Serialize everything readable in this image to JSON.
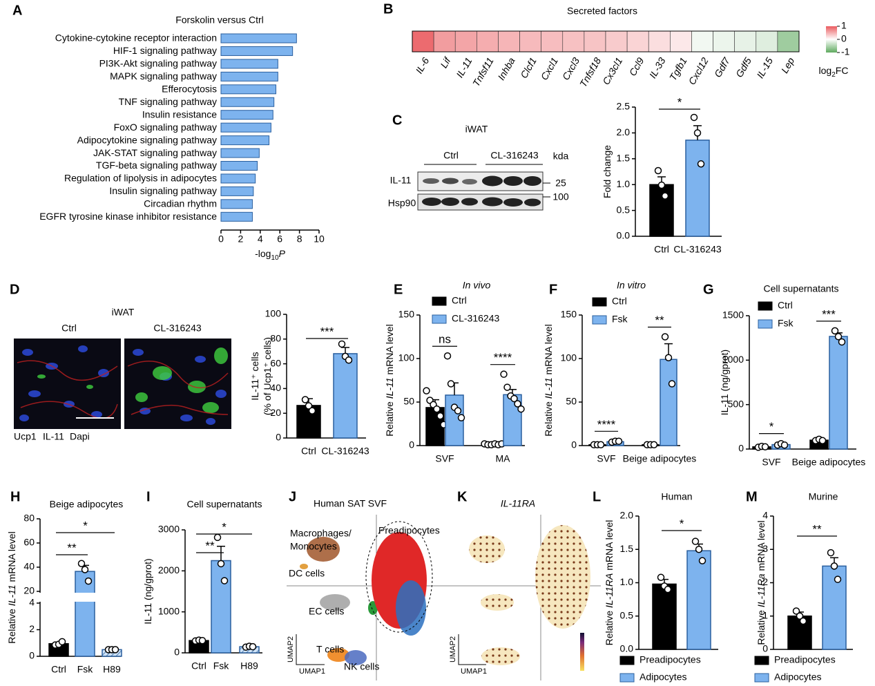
{
  "chart_data": [
    {
      "type": "barh",
      "panel": "A",
      "title": "Forskolin versus Ctrl",
      "categories": [
        "Cytokine-cytokine receptor interaction",
        "HIF-1 signaling pathway",
        "PI3K-Akt signaling pathway",
        "MAPK signaling pathway",
        "Efferocytosis",
        "TNF signaling pathway",
        "Insulin resistance",
        "FoxO signaling pathway",
        "Adipocytokine signaling pathway",
        "JAK-STAT signaling pathway",
        "TGF-beta signaling pathway",
        "Regulation of lipolysis in adipocytes",
        "Insulin signaling pathway",
        "Circadian rhythm",
        "EGFR tyrosine kinase inhibitor resistance"
      ],
      "values": [
        7.7,
        7.3,
        5.8,
        5.8,
        5.6,
        5.4,
        5.3,
        5.1,
        4.9,
        3.9,
        3.7,
        3.5,
        3.3,
        3.2,
        3.2
      ],
      "color": "#7db3ee",
      "label_colors": [
        "#e02020",
        "#000000",
        "#000000",
        "#000000",
        "#000000",
        "#000000",
        "#000000",
        "#000000",
        "#000000",
        "#000000",
        "#000000",
        "#000000",
        "#000000",
        "#000000",
        "#000000"
      ],
      "xlim": [
        0,
        10
      ],
      "xticks": [
        0,
        2,
        4,
        6,
        8,
        10
      ],
      "xlabel": [
        "-log",
        "10",
        "P"
      ]
    },
    {
      "type": "heatmap",
      "panel": "B",
      "title": "Secreted factors",
      "categories": [
        "IL-6",
        "Lif",
        "IL-11",
        "Tnfsf11",
        "Inhba",
        "Clcf1",
        "Cxcl1",
        "Cxcl3",
        "Tnfsf18",
        "Cx3cl1",
        "Ccl9",
        "IL-33",
        "Tgfb1",
        "Cxcl12",
        "Gdf7",
        "Gdf5",
        "IL-15",
        "Lep"
      ],
      "values": [
        0.9,
        0.6,
        0.55,
        0.5,
        0.45,
        0.42,
        0.4,
        0.38,
        0.36,
        0.32,
        0.26,
        0.2,
        0.14,
        -0.08,
        -0.12,
        -0.15,
        -0.2,
        -0.6
      ],
      "label_colors": [
        "#000000",
        "#000000",
        "#e02020",
        "#000000",
        "#000000",
        "#000000",
        "#000000",
        "#000000",
        "#000000",
        "#000000",
        "#000000",
        "#000000",
        "#000000",
        "#000000",
        "#000000",
        "#000000",
        "#000000",
        "#000000"
      ],
      "label_italic": true,
      "clim": [
        -1,
        1
      ],
      "cticks": [
        1,
        0,
        -1
      ],
      "colors": [
        "#5faa5f",
        "#ffffff",
        "#ea5b5f"
      ],
      "colorbar_label": [
        "log",
        "2",
        "FC"
      ]
    },
    {
      "type": "bar",
      "panel": "C",
      "categories": [
        "Ctrl",
        "CL-316243"
      ],
      "values": [
        1.0,
        1.86
      ],
      "errors": [
        0.15,
        0.28
      ],
      "points": [
        [
          1.27,
          0.99,
          0.78
        ],
        [
          2.3,
          2.0,
          1.4
        ]
      ],
      "colors": [
        "#000000",
        "#7db3ee"
      ],
      "ylim": [
        0,
        2.5
      ],
      "yticks": [
        {
          "value": 0,
          "label": "0.0"
        },
        0.5,
        {
          "value": 1,
          "label": "1.0"
        },
        1.5,
        {
          "value": 2,
          "label": "2.0"
        },
        2.5
      ],
      "ylabel": [
        [
          "Fold change"
        ]
      ],
      "significance": [
        "*"
      ]
    },
    {
      "type": "bar",
      "categories": [
        "Ctrl",
        "CL-316243"
      ],
      "values": [
        26.3,
        68.2
      ],
      "errors": [
        5.5,
        5
      ],
      "points": [
        [
          31,
          26,
          22
        ],
        [
          76,
          66,
          63
        ]
      ],
      "colors": [
        "#000000",
        "#7db3ee"
      ],
      "ylim": [
        0,
        100
      ],
      "yticks": [
        0,
        20,
        40,
        60,
        80,
        100
      ],
      "ylabel": [
        [
          "IL-11⁺ cells"
        ],
        [
          "(% of Ucp1⁺ cells)"
        ]
      ],
      "significance": [
        "***"
      ]
    },
    {
      "type": "bar",
      "panel": "E",
      "title": "In vivo",
      "title_italic": true,
      "categories": [
        "SVF",
        "MA"
      ],
      "series": [
        {
          "name": "Ctrl",
          "color": "#000000",
          "values": [
            43.7,
            1.5
          ],
          "errors": [
            9,
            0.5
          ],
          "points": [
            [
              63,
              52,
              47,
              42,
              34,
              24
            ],
            [
              2,
              1,
              1,
              2,
              1,
              2
            ]
          ]
        },
        {
          "name": "CL-316243",
          "color": "#7db3ee",
          "values": [
            58,
            58.5
          ],
          "errors": [
            14,
            6
          ],
          "points": [
            [
              103,
              71,
              44,
              40,
              32
            ],
            [
              82,
              67,
              57,
              54,
              48,
              42
            ]
          ]
        }
      ],
      "legend": "top-left",
      "ylim": [
        0,
        150
      ],
      "yticks": [
        0,
        50,
        100,
        150
      ],
      "ylabel": [
        [
          "Relative ",
          "IL-11",
          " mRNA level"
        ]
      ],
      "significance": [
        "ns",
        "****"
      ]
    },
    {
      "type": "bar",
      "panel": "F",
      "title": "In vitro",
      "title_italic": true,
      "categories": [
        "SVF",
        "Beige adipocytes"
      ],
      "series": [
        {
          "name": "Ctrl",
          "color": "#000000",
          "values": [
            1,
            1
          ],
          "errors": [
            0.3,
            0.3
          ],
          "points": [
            [
              1,
              1,
              1
            ],
            [
              1,
              1,
              1
            ]
          ]
        },
        {
          "name": "Fsk",
          "color": "#7db3ee",
          "values": [
            4.5,
            99
          ],
          "errors": [
            0.8,
            18
          ],
          "points": [
            [
              4,
              5,
              5
            ],
            [
              125,
              101,
              71
            ]
          ]
        }
      ],
      "legend": "top-left",
      "ylim": [
        0,
        150
      ],
      "yticks": [
        0,
        50,
        100,
        150
      ],
      "ylabel": [
        [
          "Relative ",
          "IL-11",
          " mRNA level"
        ]
      ],
      "significance": [
        "****",
        "**"
      ]
    },
    {
      "type": "bar",
      "panel": "G",
      "title": "Cell supernatants",
      "categories": [
        "SVF",
        "Beige adipocytes"
      ],
      "series": [
        {
          "name": "Ctrl",
          "color": "#000000",
          "values": [
            25,
            100
          ],
          "errors": [
            8,
            10
          ],
          "points": [
            [
              20,
              30,
              25
            ],
            [
              95,
              110,
              95
            ]
          ]
        },
        {
          "name": "Fsk",
          "color": "#7db3ee",
          "values": [
            50,
            1267
          ],
          "errors": [
            15,
            40
          ],
          "points": [
            [
              45,
              60,
              45
            ],
            [
              1330,
              1265,
              1205
            ]
          ]
        }
      ],
      "legend": "top-left",
      "ylim": [
        0,
        1500
      ],
      "yticks": [
        0,
        500,
        1000,
        1500
      ],
      "ylabel": [
        [
          "IL-11 (ng/gprot)"
        ]
      ],
      "significance": [
        "*",
        "***"
      ]
    },
    {
      "type": "bar",
      "panel": "H",
      "title": "Beige adipocytes",
      "categories": [
        "Ctrl",
        "Fsk",
        "H89"
      ],
      "values": [
        0.95,
        36.5,
        0.5
      ],
      "errors": [
        0.1,
        5,
        0.05
      ],
      "points": [
        [
          0.85,
          0.9,
          1.1
        ],
        [
          43,
          38,
          28.5
        ],
        [
          0.5,
          0.5,
          0.5
        ]
      ],
      "colors": [
        "#000000",
        "#7db3ee",
        "#cfe3f7"
      ],
      "hatch": [
        false,
        false,
        true
      ],
      "ylim": [
        0,
        80
      ],
      "ybreak": [
        4,
        20
      ],
      "yticks": [
        0,
        2,
        4,
        20,
        40,
        60,
        80
      ],
      "ylabel": [
        [
          "Relative ",
          "IL-11",
          " mRNA level"
        ]
      ],
      "significance": [
        "**",
        "*"
      ]
    },
    {
      "type": "bar",
      "panel": "I",
      "title": "Cell supernatants",
      "categories": [
        "Ctrl",
        "Fsk",
        "H89"
      ],
      "values": [
        300,
        2250,
        150
      ],
      "errors": [
        25,
        350,
        20
      ],
      "points": [
        [
          290,
          310,
          300
        ],
        [
          2816,
          2175,
          1760
        ],
        [
          140,
          160,
          150
        ]
      ],
      "colors": [
        "#000000",
        "#7db3ee",
        "#cfe3f7"
      ],
      "hatch": [
        false,
        false,
        true
      ],
      "ylim": [
        0,
        3000
      ],
      "yticks": [
        0,
        1000,
        2000,
        3000
      ],
      "ylabel": [
        [
          "IL-11 (ng/gprot)"
        ]
      ],
      "significance": [
        "**",
        "*"
      ]
    },
    {
      "type": "bar",
      "panel": "L",
      "title": "Human",
      "categories": [
        "Preadipocytes",
        "Adipocytes"
      ],
      "values": [
        0.98,
        1.48
      ],
      "errors": [
        0.07,
        0.1
      ],
      "points": [
        [
          1.08,
          0.95,
          0.9
        ],
        [
          1.62,
          1.5,
          1.33
        ]
      ],
      "colors": [
        "#000000",
        "#7db3ee"
      ],
      "legend": "bottom",
      "ylim": [
        0,
        2
      ],
      "yticks": [
        {
          "value": 0,
          "label": "0.0"
        },
        0.5,
        {
          "value": 1,
          "label": "1.0"
        },
        1.5,
        {
          "value": 2,
          "label": "2.0"
        }
      ],
      "ylabel": [
        [
          "Relative ",
          "IL-11RA",
          " mRNA level"
        ]
      ],
      "significance": [
        "*"
      ]
    },
    {
      "type": "bar",
      "panel": "M",
      "title": "Murine",
      "categories": [
        "Preadipocytes",
        "Adipocytes"
      ],
      "values": [
        1.0,
        2.5
      ],
      "errors": [
        0.12,
        0.25
      ],
      "points": [
        [
          1.15,
          1.0,
          0.85
        ],
        [
          2.9,
          2.5,
          2.1
        ]
      ],
      "colors": [
        "#000000",
        "#7db3ee"
      ],
      "legend": "bottom",
      "ylim": [
        0,
        4
      ],
      "yticks": [
        0,
        1,
        2,
        3,
        4
      ],
      "ylabel": [
        [
          "Relative ",
          "IL-11Ra",
          " mRNA level"
        ]
      ],
      "significance": [
        "**"
      ]
    }
  ],
  "images": [
    {
      "title": "iWAT",
      "groups": [
        "Ctrl",
        "CL-316243"
      ],
      "unit": "kda",
      "bands": [
        "IL-11",
        "Hsp90"
      ],
      "markers": [
        25,
        100
      ]
    },
    {
      "panel": "D",
      "title": "iWAT",
      "groups": [
        "Ctrl",
        "CL-316243"
      ],
      "stains": [
        {
          "name": "Ucp1",
          "color": "#1a9a1a"
        },
        {
          "name": "IL-11",
          "color": "#d02020"
        },
        {
          "name": "Dapi",
          "color": "#2040e0"
        }
      ]
    },
    {
      "panel": "J",
      "title": "Human SAT SVF",
      "clusters": [
        "Macrophages/",
        "Monocytes",
        "Preadipocytes",
        "DC cells",
        "EC cells",
        "T cells",
        "NK cells"
      ],
      "axes": [
        "UMAP2",
        "UMAP1"
      ]
    },
    {
      "panel": "K",
      "title": "IL-11RA",
      "axes": [
        "UMAP2",
        "UMAP1"
      ]
    }
  ]
}
